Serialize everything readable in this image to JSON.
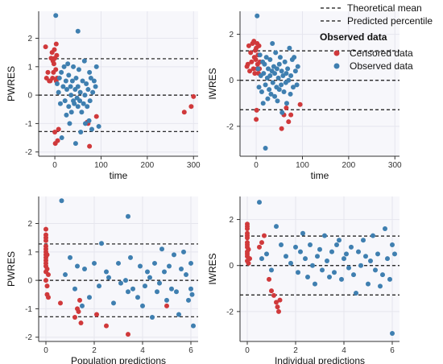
{
  "colors": {
    "censored": "#d0393b",
    "observed": "#3f7fb0",
    "panel_bg": "#f7f7fb",
    "grid": "#e6e6ee",
    "line": "#111111"
  },
  "legend": {
    "line_items": [
      "Theoretical mean",
      "Predicted percentile"
    ],
    "title": "Observed data",
    "point_items": [
      "Censored data",
      "Observed data"
    ]
  },
  "chart_data": [
    {
      "type": "scatter",
      "xlabel": "time",
      "ylabel": "PWRES",
      "xlim": [
        -35,
        310
      ],
      "ylim": [
        -2.15,
        2.95
      ],
      "xticks": [
        0,
        100,
        200,
        300
      ],
      "yticks": [
        -2,
        -1,
        0,
        1,
        2
      ],
      "grid": true,
      "hlines": {
        "mean": 0,
        "percentiles": [
          -1.28,
          1.28
        ]
      },
      "series": [
        {
          "kind": "censored",
          "x": [
            -20,
            -18,
            -15,
            -12,
            -10,
            -8,
            -6,
            -5,
            -4,
            -3,
            -2,
            -1,
            0,
            0,
            1,
            2,
            3,
            3,
            4,
            5,
            6,
            8,
            70,
            72,
            75,
            90,
            280,
            295,
            300
          ],
          "y": [
            1.7,
            0.6,
            0.8,
            0.5,
            0.5,
            1.3,
            1.5,
            0.6,
            1.2,
            0.8,
            1.1,
            1.6,
            1.3,
            -1.3,
            -1.7,
            0.9,
            1.8,
            0.5,
            1.4,
            0.6,
            -1.6,
            -1.2,
            -0.95,
            -1.0,
            -1.8,
            -0.75,
            -0.6,
            -0.4,
            -0.05
          ]
        },
        {
          "kind": "observed",
          "x": [
            2,
            5,
            8,
            10,
            12,
            14,
            15,
            18,
            20,
            22,
            24,
            25,
            26,
            28,
            30,
            30,
            32,
            34,
            35,
            36,
            38,
            40,
            40,
            42,
            44,
            45,
            46,
            48,
            50,
            50,
            52,
            54,
            55,
            56,
            58,
            60,
            62,
            64,
            65,
            66,
            68,
            70,
            72,
            74,
            75,
            76,
            78,
            80,
            82,
            85,
            88,
            90,
            95,
            50
          ],
          "y": [
            2.8,
            0.4,
            0.1,
            0.6,
            -0.3,
            0.8,
            -1.5,
            0.3,
            1.0,
            -0.2,
            0.5,
            -0.7,
            0.2,
            1.1,
            -0.4,
            0.7,
            -1.0,
            0.3,
            0.0,
            -0.6,
            0.5,
            -0.2,
            1.0,
            -0.3,
            0.2,
            -1.7,
            0.6,
            -0.1,
            -0.4,
            0.3,
            0.9,
            -0.2,
            0.1,
            -1.3,
            -0.6,
            0.5,
            -0.3,
            1.2,
            0.0,
            -1.0,
            0.4,
            -0.4,
            0.2,
            -0.9,
            0.8,
            -0.2,
            0.6,
            -1.2,
            0.1,
            0.5,
            0.3,
            1.0,
            -1.1,
            2.25
          ]
        }
      ]
    },
    {
      "type": "scatter",
      "xlabel": "time",
      "ylabel": "IWRES",
      "xlim": [
        -35,
        310
      ],
      "ylim": [
        -3.3,
        3.0
      ],
      "xticks": [
        0,
        100,
        200,
        300
      ],
      "yticks": [
        -2,
        0,
        2
      ],
      "grid": true,
      "hlines": {
        "mean": 0,
        "percentiles": [
          -1.28,
          1.28
        ]
      },
      "series": [
        {
          "kind": "censored",
          "x": [
            -20,
            -18,
            -16,
            -14,
            -12,
            -10,
            -8,
            -6,
            -5,
            -4,
            -3,
            -2,
            -1,
            0,
            0,
            1,
            2,
            2,
            3,
            4,
            5,
            6,
            7,
            8,
            55,
            60,
            65,
            70,
            75,
            95
          ],
          "y": [
            0.6,
            0.7,
            1.5,
            0.4,
            1.2,
            0.8,
            1.6,
            0.5,
            1.7,
            1.0,
            0.3,
            1.3,
            0.9,
            1.4,
            -1.7,
            -1.3,
            0.5,
            1.6,
            0.7,
            1.1,
            0.3,
            1.5,
            0.5,
            0.8,
            -2.1,
            -1.5,
            -1.2,
            -1.8,
            -1.5,
            -1.05
          ]
        },
        {
          "kind": "observed",
          "x": [
            2,
            4,
            6,
            8,
            10,
            12,
            14,
            15,
            16,
            18,
            20,
            22,
            24,
            25,
            26,
            28,
            30,
            30,
            32,
            34,
            35,
            36,
            38,
            40,
            40,
            42,
            44,
            45,
            46,
            48,
            50,
            50,
            52,
            54,
            55,
            56,
            58,
            60,
            62,
            64,
            65,
            66,
            68,
            70,
            72,
            74,
            75,
            78,
            80,
            82,
            85,
            88,
            90,
            20
          ],
          "y": [
            2.8,
            0.5,
            -0.3,
            1.1,
            0.2,
            -0.5,
            0.8,
            -1.0,
            0.3,
            0.7,
            -0.2,
            1.0,
            0.1,
            -0.8,
            0.5,
            -0.4,
            0.9,
            0.2,
            -0.6,
            0.4,
            1.6,
            -0.1,
            0.6,
            -0.7,
            0.3,
            1.2,
            -0.3,
            0.5,
            -0.9,
            0.1,
            0.7,
            -0.4,
            1.0,
            -0.2,
            0.4,
            -1.4,
            0.2,
            -0.5,
            0.8,
            -0.1,
            0.3,
            -1.0,
            0.5,
            0.0,
            1.4,
            -0.6,
            0.2,
            0.9,
            -0.3,
            1.0,
            0.4,
            -0.2,
            0.6,
            -2.95
          ]
        }
      ]
    },
    {
      "type": "scatter",
      "xlabel": "Population predictions",
      "ylabel": "PWRES",
      "xlim": [
        -0.3,
        6.3
      ],
      "ylim": [
        -2.15,
        2.95
      ],
      "xticks": [
        0,
        2,
        4,
        6
      ],
      "yticks": [
        -2,
        -1,
        0,
        1,
        2
      ],
      "grid": true,
      "hlines": {
        "mean": 0,
        "percentiles": [
          -1.28,
          1.28
        ]
      },
      "series": [
        {
          "kind": "censored",
          "x": [
            0,
            0,
            0,
            0,
            0,
            0,
            0,
            0,
            0,
            0,
            0,
            0,
            0,
            0,
            0.05,
            0.05,
            0.05,
            0.05,
            0.1,
            0.1,
            0.6,
            1.2,
            1.3,
            1.35,
            1.4,
            1.45,
            2.1,
            2.5,
            3.4,
            5.0
          ],
          "y": [
            1.8,
            1.6,
            1.4,
            1.2,
            1.0,
            0.9,
            0.8,
            0.7,
            0.6,
            0.5,
            0.3,
            0.0,
            1.5,
            1.1,
            -0.2,
            -0.5,
            0.4,
            0.9,
            -0.6,
            0.2,
            -0.8,
            -1.3,
            -1.0,
            -1.1,
            -0.7,
            -1.5,
            -1.2,
            -1.6,
            -1.9,
            -0.9
          ]
        },
        {
          "kind": "observed",
          "x": [
            0.65,
            0.8,
            1.0,
            1.2,
            1.3,
            1.5,
            1.6,
            1.8,
            2.0,
            2.2,
            2.3,
            2.5,
            2.6,
            2.8,
            3.0,
            3.1,
            3.3,
            3.4,
            3.5,
            3.6,
            3.8,
            3.9,
            4.0,
            4.1,
            4.2,
            4.3,
            4.4,
            4.5,
            4.6,
            4.7,
            4.8,
            4.9,
            5.0,
            5.1,
            5.2,
            5.3,
            5.4,
            5.5,
            5.6,
            5.7,
            5.8,
            5.9,
            6.0,
            6.05,
            6.1,
            6.0,
            3.4
          ],
          "y": [
            2.8,
            0.2,
            0.8,
            -0.3,
            0.5,
            -0.9,
            0.4,
            -0.6,
            0.6,
            -0.2,
            1.3,
            0.3,
            0.1,
            -0.8,
            0.6,
            -0.1,
            0.0,
            -0.4,
            0.8,
            -0.3,
            -0.6,
            0.5,
            -0.9,
            -0.2,
            0.3,
            0.1,
            -1.3,
            0.6,
            -0.4,
            -0.1,
            1.1,
            0.3,
            -0.7,
            0.5,
            -0.3,
            0.9,
            -0.4,
            -1.2,
            0.4,
            1.0,
            0.2,
            -0.7,
            0.6,
            -0.5,
            -1.6,
            -0.3,
            2.25
          ]
        }
      ]
    },
    {
      "type": "scatter",
      "xlabel": "Individual predictions",
      "ylabel": "IWRES",
      "xlim": [
        -0.3,
        6.3
      ],
      "ylim": [
        -3.3,
        3.0
      ],
      "xticks": [
        0,
        2,
        4,
        6
      ],
      "yticks": [
        -2,
        0,
        2
      ],
      "grid": true,
      "hlines": {
        "mean": 0,
        "percentiles": [
          -1.28,
          1.28
        ]
      },
      "series": [
        {
          "kind": "censored",
          "x": [
            0,
            0,
            0,
            0,
            0,
            0,
            0,
            0,
            0,
            0,
            0,
            0,
            0,
            0.05,
            0.05,
            0.1,
            0.5,
            0.6,
            0.7,
            0.9,
            1.0,
            1.1,
            1.2,
            1.25,
            1.3,
            1.35
          ],
          "y": [
            1.8,
            1.6,
            1.4,
            1.2,
            1.0,
            0.8,
            0.6,
            0.4,
            0.2,
            1.7,
            1.3,
            0.9,
            0.5,
            0.1,
            0.7,
            0.3,
            0.8,
            1.0,
            1.3,
            -0.6,
            -1.1,
            -1.3,
            -1.6,
            -1.8,
            -2.0,
            -1.5
          ]
        },
        {
          "kind": "observed",
          "x": [
            0.5,
            0.6,
            0.8,
            1.0,
            1.2,
            1.4,
            1.6,
            1.8,
            2.0,
            2.1,
            2.2,
            2.3,
            2.4,
            2.5,
            2.6,
            2.7,
            2.8,
            2.9,
            3.0,
            3.1,
            3.2,
            3.3,
            3.4,
            3.5,
            3.6,
            3.7,
            3.8,
            3.9,
            4.0,
            4.1,
            4.2,
            4.3,
            4.4,
            4.5,
            4.6,
            4.7,
            4.8,
            4.9,
            5.0,
            5.1,
            5.2,
            5.3,
            5.4,
            5.5,
            5.6,
            5.7,
            5.8,
            5.9,
            6.0,
            6.1,
            6.0
          ],
          "y": [
            2.75,
            0.3,
            0.5,
            -0.2,
            1.7,
            0.9,
            0.4,
            0.1,
            0.8,
            -0.3,
            0.6,
            1.4,
            0.3,
            -0.5,
            0.9,
            0.0,
            -0.8,
            0.4,
            0.7,
            -0.2,
            1.3,
            0.2,
            -0.5,
            0.6,
            -0.3,
            0.9,
            1.1,
            -0.6,
            0.3,
            0.5,
            -0.1,
            0.8,
            -0.4,
            -1.2,
            0.6,
            0.0,
            1.1,
            0.4,
            -0.8,
            0.2,
            1.3,
            -0.2,
            0.5,
            -0.9,
            -0.4,
            1.6,
            0.3,
            -0.6,
            0.9,
            0.5,
            -2.95
          ]
        }
      ]
    }
  ]
}
